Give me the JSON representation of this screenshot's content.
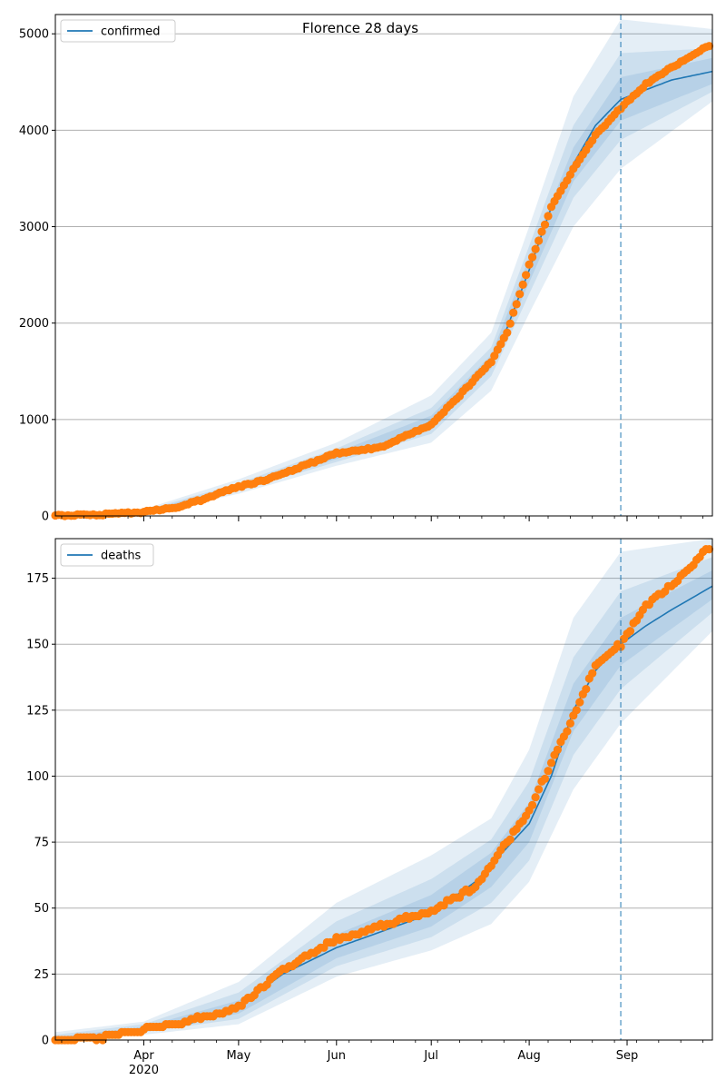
{
  "title": "Florence 28 days",
  "x_labels": [
    "Apr",
    "May",
    "Jun",
    "Jul",
    "Aug",
    "Sep"
  ],
  "x_year": "2020",
  "colors": {
    "line": "#1f77b4",
    "observed": "#ff7f0e",
    "band": "#1f77b4",
    "grid": "#b0b0b0"
  },
  "chart_data": [
    {
      "type": "line",
      "panel": "top",
      "x_axis": "date",
      "xlim": [
        "2020-03-04",
        "2020-09-28"
      ],
      "ylim": [
        0,
        5200
      ],
      "y_ticks": [
        0,
        1000,
        2000,
        3000,
        4000,
        5000
      ],
      "grid": "horizontal",
      "legend": "top-left",
      "forecast_start": "2020-08-30",
      "series": [
        {
          "name": "confirmed",
          "kind": "model-line",
          "points": [
            [
              "2020-03-04",
              5
            ],
            [
              "2020-03-15",
              8
            ],
            [
              "2020-03-25",
              20
            ],
            [
              "2020-04-01",
              40
            ],
            [
              "2020-04-10",
              80
            ],
            [
              "2020-04-20",
              160
            ],
            [
              "2020-04-25",
              230
            ],
            [
              "2020-05-01",
              300
            ],
            [
              "2020-05-10",
              370
            ],
            [
              "2020-05-20",
              480
            ],
            [
              "2020-06-01",
              620
            ],
            [
              "2020-06-15",
              740
            ],
            [
              "2020-07-01",
              980
            ],
            [
              "2020-07-10",
              1250
            ],
            [
              "2020-07-20",
              1600
            ],
            [
              "2020-07-25",
              1950
            ],
            [
              "2020-08-01",
              2550
            ],
            [
              "2020-08-08",
              3200
            ],
            [
              "2020-08-15",
              3650
            ],
            [
              "2020-08-22",
              4050
            ],
            [
              "2020-08-30",
              4320
            ],
            [
              "2020-09-07",
              4420
            ],
            [
              "2020-09-15",
              4520
            ],
            [
              "2020-09-28",
              4610
            ]
          ]
        },
        {
          "name": "",
          "kind": "observed",
          "points": [
            [
              "2020-03-04",
              5
            ],
            [
              "2020-03-15",
              8
            ],
            [
              "2020-03-25",
              25
            ],
            [
              "2020-04-01",
              40
            ],
            [
              "2020-04-10",
              80
            ],
            [
              "2020-04-20",
              170
            ],
            [
              "2020-04-25",
              240
            ],
            [
              "2020-05-01",
              300
            ],
            [
              "2020-05-10",
              380
            ],
            [
              "2020-05-20",
              500
            ],
            [
              "2020-06-01",
              650
            ],
            [
              "2020-06-15",
              710
            ],
            [
              "2020-07-01",
              950
            ],
            [
              "2020-07-10",
              1250
            ],
            [
              "2020-07-20",
              1600
            ],
            [
              "2020-07-25",
              1900
            ],
            [
              "2020-08-01",
              2600
            ],
            [
              "2020-08-08",
              3200
            ],
            [
              "2020-08-15",
              3600
            ],
            [
              "2020-08-22",
              3950
            ],
            [
              "2020-08-30",
              4230
            ],
            [
              "2020-09-07",
              4480
            ],
            [
              "2020-09-15",
              4650
            ],
            [
              "2020-09-28",
              4900
            ]
          ]
        }
      ],
      "bands": [
        {
          "level": "outer",
          "upper": [
            [
              "2020-03-04",
              15
            ],
            [
              "2020-04-01",
              70
            ],
            [
              "2020-05-01",
              380
            ],
            [
              "2020-06-01",
              760
            ],
            [
              "2020-07-01",
              1250
            ],
            [
              "2020-07-20",
              1900
            ],
            [
              "2020-08-01",
              3000
            ],
            [
              "2020-08-15",
              4350
            ],
            [
              "2020-08-30",
              5150
            ],
            [
              "2020-09-28",
              5050
            ]
          ],
          "lower": [
            [
              "2020-03-04",
              0
            ],
            [
              "2020-04-01",
              15
            ],
            [
              "2020-05-01",
              230
            ],
            [
              "2020-06-01",
              520
            ],
            [
              "2020-07-01",
              760
            ],
            [
              "2020-07-20",
              1300
            ],
            [
              "2020-08-01",
              2100
            ],
            [
              "2020-08-15",
              3000
            ],
            [
              "2020-08-30",
              3600
            ],
            [
              "2020-09-28",
              4300
            ]
          ]
        },
        {
          "level": "middle",
          "upper": [
            [
              "2020-03-04",
              10
            ],
            [
              "2020-04-01",
              55
            ],
            [
              "2020-05-01",
              340
            ],
            [
              "2020-06-01",
              700
            ],
            [
              "2020-07-01",
              1120
            ],
            [
              "2020-07-20",
              1750
            ],
            [
              "2020-08-01",
              2800
            ],
            [
              "2020-08-15",
              4050
            ],
            [
              "2020-08-30",
              4800
            ],
            [
              "2020-09-28",
              4850
            ]
          ],
          "lower": [
            [
              "2020-03-04",
              0
            ],
            [
              "2020-04-01",
              25
            ],
            [
              "2020-05-01",
              260
            ],
            [
              "2020-06-01",
              560
            ],
            [
              "2020-07-01",
              850
            ],
            [
              "2020-07-20",
              1450
            ],
            [
              "2020-08-01",
              2300
            ],
            [
              "2020-08-15",
              3300
            ],
            [
              "2020-08-30",
              3900
            ],
            [
              "2020-09-28",
              4400
            ]
          ]
        },
        {
          "level": "inner",
          "upper": [
            [
              "2020-03-04",
              7
            ],
            [
              "2020-04-01",
              45
            ],
            [
              "2020-05-01",
              315
            ],
            [
              "2020-06-01",
              660
            ],
            [
              "2020-07-01",
              1040
            ],
            [
              "2020-07-20",
              1670
            ],
            [
              "2020-08-01",
              2680
            ],
            [
              "2020-08-15",
              3820
            ],
            [
              "2020-08-30",
              4550
            ],
            [
              "2020-09-28",
              4750
            ]
          ],
          "lower": [
            [
              "2020-03-04",
              2
            ],
            [
              "2020-04-01",
              33
            ],
            [
              "2020-05-01",
              285
            ],
            [
              "2020-06-01",
              590
            ],
            [
              "2020-07-01",
              920
            ],
            [
              "2020-07-20",
              1530
            ],
            [
              "2020-08-01",
              2420
            ],
            [
              "2020-08-15",
              3470
            ],
            [
              "2020-08-30",
              4100
            ],
            [
              "2020-09-28",
              4480
            ]
          ]
        }
      ]
    },
    {
      "type": "line",
      "panel": "bottom",
      "x_axis": "date",
      "xlim": [
        "2020-03-04",
        "2020-09-28"
      ],
      "ylim": [
        0,
        190
      ],
      "y_ticks": [
        0,
        25,
        50,
        75,
        100,
        125,
        150,
        175
      ],
      "grid": "horizontal",
      "legend": "top-left",
      "forecast_start": "2020-08-30",
      "series": [
        {
          "name": "deaths",
          "kind": "model-line",
          "points": [
            [
              "2020-03-04",
              0
            ],
            [
              "2020-03-20",
              1
            ],
            [
              "2020-04-01",
              4
            ],
            [
              "2020-04-15",
              6
            ],
            [
              "2020-05-01",
              13
            ],
            [
              "2020-05-15",
              25
            ],
            [
              "2020-06-01",
              35
            ],
            [
              "2020-06-15",
              41
            ],
            [
              "2020-07-01",
              48
            ],
            [
              "2020-07-15",
              60
            ],
            [
              "2020-08-01",
              82
            ],
            [
              "2020-08-08",
              100
            ],
            [
              "2020-08-15",
              125
            ],
            [
              "2020-08-22",
              140
            ],
            [
              "2020-08-30",
              150
            ],
            [
              "2020-09-07",
              157
            ],
            [
              "2020-09-15",
              163
            ],
            [
              "2020-09-28",
              172
            ]
          ]
        },
        {
          "name": "",
          "kind": "observed",
          "points": [
            [
              "2020-03-04",
              0
            ],
            [
              "2020-03-20",
              1
            ],
            [
              "2020-04-01",
              4
            ],
            [
              "2020-04-15",
              7
            ],
            [
              "2020-05-01",
              12
            ],
            [
              "2020-05-15",
              27
            ],
            [
              "2020-06-01",
              38
            ],
            [
              "2020-06-15",
              43
            ],
            [
              "2020-07-01",
              49
            ],
            [
              "2020-07-15",
              58
            ],
            [
              "2020-08-01",
              87
            ],
            [
              "2020-08-08",
              105
            ],
            [
              "2020-08-15",
              123
            ],
            [
              "2020-08-22",
              142
            ],
            [
              "2020-08-30",
              150
            ],
            [
              "2020-09-07",
              165
            ],
            [
              "2020-09-15",
              172
            ],
            [
              "2020-09-28",
              188
            ]
          ]
        }
      ],
      "bands": [
        {
          "level": "outer",
          "upper": [
            [
              "2020-03-04",
              3
            ],
            [
              "2020-04-01",
              7
            ],
            [
              "2020-05-01",
              22
            ],
            [
              "2020-06-01",
              52
            ],
            [
              "2020-07-01",
              70
            ],
            [
              "2020-07-20",
              84
            ],
            [
              "2020-08-01",
              110
            ],
            [
              "2020-08-15",
              160
            ],
            [
              "2020-08-30",
              185
            ],
            [
              "2020-09-28",
              190
            ]
          ],
          "lower": [
            [
              "2020-03-04",
              0
            ],
            [
              "2020-04-01",
              2
            ],
            [
              "2020-05-01",
              6
            ],
            [
              "2020-06-01",
              24
            ],
            [
              "2020-07-01",
              34
            ],
            [
              "2020-07-20",
              44
            ],
            [
              "2020-08-01",
              60
            ],
            [
              "2020-08-15",
              95
            ],
            [
              "2020-08-30",
              120
            ],
            [
              "2020-09-28",
              155
            ]
          ]
        },
        {
          "level": "middle",
          "upper": [
            [
              "2020-03-04",
              2
            ],
            [
              "2020-04-01",
              6
            ],
            [
              "2020-05-01",
              18
            ],
            [
              "2020-06-01",
              45
            ],
            [
              "2020-07-01",
              61
            ],
            [
              "2020-07-20",
              76
            ],
            [
              "2020-08-01",
              98
            ],
            [
              "2020-08-15",
              145
            ],
            [
              "2020-08-30",
              170
            ],
            [
              "2020-09-28",
              183
            ]
          ],
          "lower": [
            [
              "2020-03-04",
              0
            ],
            [
              "2020-04-01",
              3
            ],
            [
              "2020-05-01",
              8
            ],
            [
              "2020-06-01",
              28
            ],
            [
              "2020-07-01",
              39
            ],
            [
              "2020-07-20",
              52
            ],
            [
              "2020-08-01",
              68
            ],
            [
              "2020-08-15",
              108
            ],
            [
              "2020-08-30",
              133
            ],
            [
              "2020-09-28",
              162
            ]
          ]
        },
        {
          "level": "inner",
          "upper": [
            [
              "2020-03-04",
              1
            ],
            [
              "2020-04-01",
              5
            ],
            [
              "2020-05-01",
              15
            ],
            [
              "2020-06-01",
              40
            ],
            [
              "2020-07-01",
              55
            ],
            [
              "2020-07-20",
              71
            ],
            [
              "2020-08-01",
              90
            ],
            [
              "2020-08-15",
              135
            ],
            [
              "2020-08-30",
              160
            ],
            [
              "2020-09-28",
              178
            ]
          ],
          "lower": [
            [
              "2020-03-04",
              0
            ],
            [
              "2020-04-01",
              3
            ],
            [
              "2020-05-01",
              10
            ],
            [
              "2020-06-01",
              31
            ],
            [
              "2020-07-01",
              43
            ],
            [
              "2020-07-20",
              58
            ],
            [
              "2020-08-01",
              75
            ],
            [
              "2020-08-15",
              117
            ],
            [
              "2020-08-30",
              142
            ],
            [
              "2020-09-28",
              167
            ]
          ]
        }
      ]
    }
  ]
}
